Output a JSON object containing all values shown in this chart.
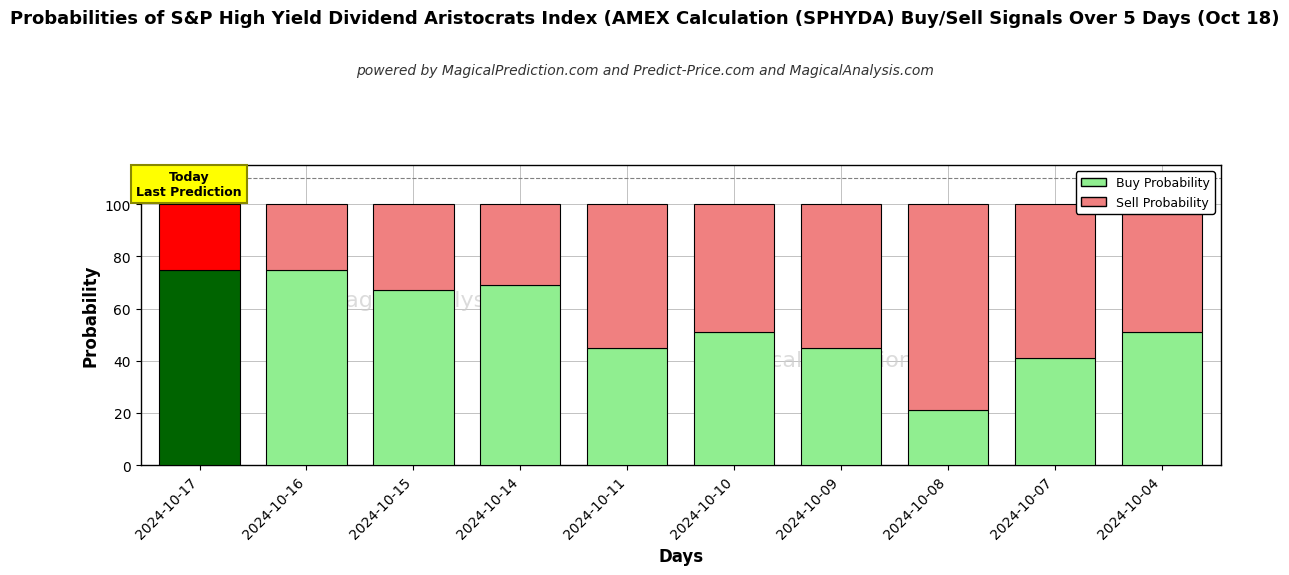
{
  "title": "Probabilities of S&P High Yield Dividend Aristocrats Index (AMEX Calculation (SPHYDA) Buy/Sell Signals Over 5 Days (Oct 18)",
  "subtitle": "powered by MagicalPrediction.com and Predict-Price.com and MagicalAnalysis.com",
  "xlabel": "Days",
  "ylabel": "Probability",
  "dates": [
    "2024-10-17",
    "2024-10-16",
    "2024-10-15",
    "2024-10-14",
    "2024-10-11",
    "2024-10-10",
    "2024-10-09",
    "2024-10-08",
    "2024-10-07",
    "2024-10-04"
  ],
  "buy_probs": [
    75,
    75,
    67,
    69,
    45,
    51,
    45,
    21,
    41,
    51
  ],
  "sell_probs": [
    25,
    25,
    33,
    31,
    55,
    49,
    55,
    79,
    59,
    49
  ],
  "buy_colors": [
    "#006400",
    "#90EE90",
    "#90EE90",
    "#90EE90",
    "#90EE90",
    "#90EE90",
    "#90EE90",
    "#90EE90",
    "#90EE90",
    "#90EE90"
  ],
  "sell_colors": [
    "#FF0000",
    "#F08080",
    "#F08080",
    "#F08080",
    "#F08080",
    "#F08080",
    "#F08080",
    "#F08080",
    "#F08080",
    "#F08080"
  ],
  "today_label_1": "Today",
  "today_label_2": "Last Prediction",
  "today_box_color": "#FFFF00",
  "ylim": [
    0,
    115
  ],
  "yticks": [
    0,
    20,
    40,
    60,
    80,
    100
  ],
  "legend_buy_color": "#90EE90",
  "legend_sell_color": "#F08080",
  "legend_buy_label": "Buy Probability",
  "legend_sell_label": "Sell Probability",
  "bar_edge_color": "#000000",
  "grid_color": "#aaaaaa",
  "background_color": "#FFFFFF",
  "title_fontsize": 13,
  "subtitle_fontsize": 10,
  "axis_label_fontsize": 12,
  "tick_fontsize": 10,
  "dashed_line_y": 110
}
